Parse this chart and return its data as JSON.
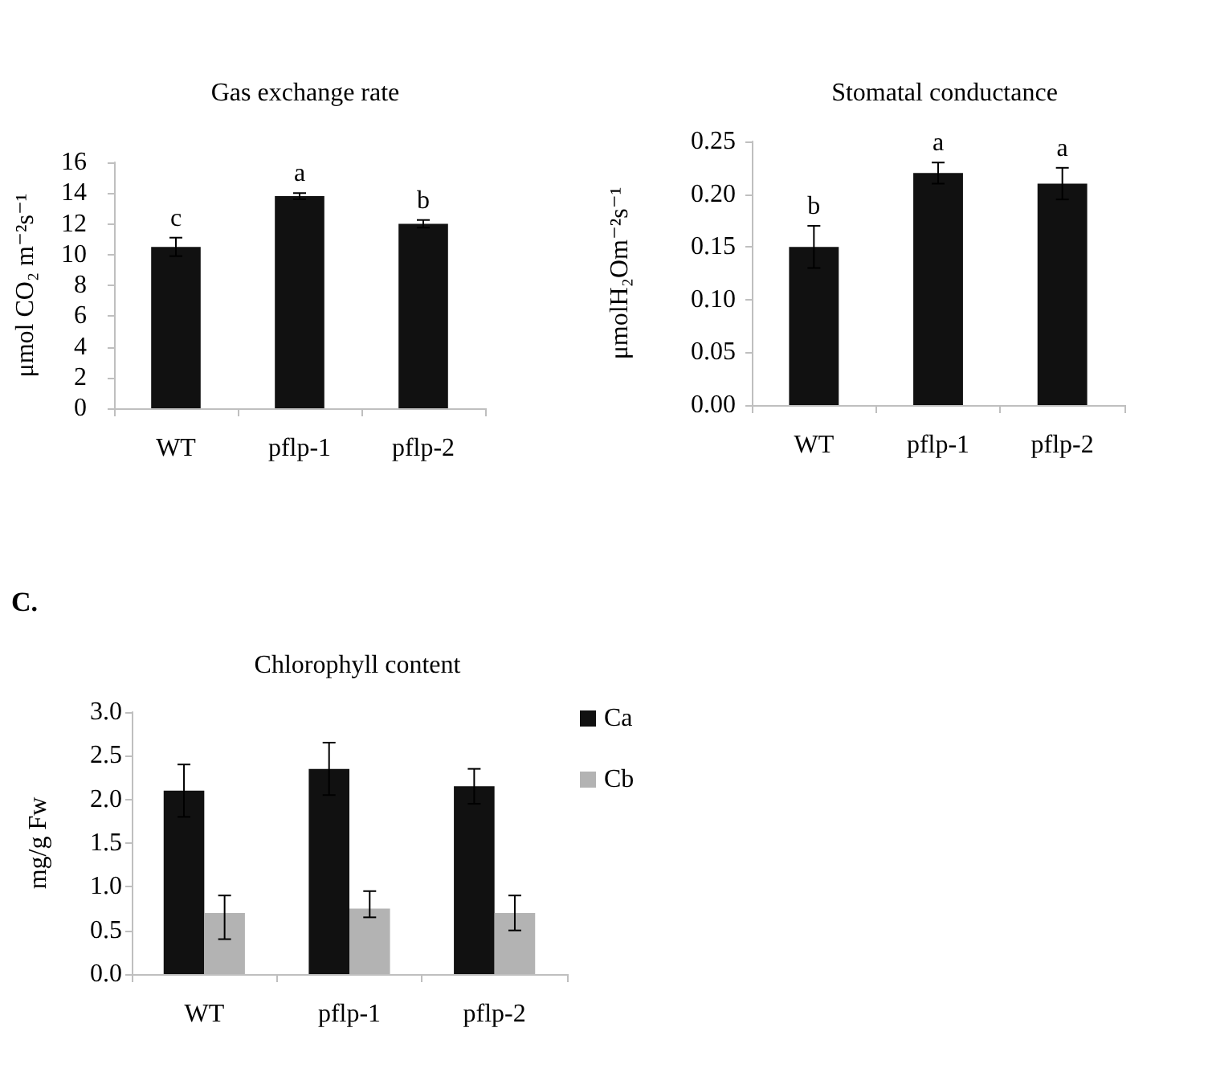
{
  "chart_data": [
    {
      "type": "bar",
      "title": "Gas exchange rate",
      "ylabel": "μmol CO₂ m⁻²s⁻¹",
      "categories": [
        "WT",
        "pflp-1",
        "pflp-2"
      ],
      "values": [
        10.5,
        13.8,
        12.0
      ],
      "errors": [
        0.6,
        0.2,
        0.25
      ],
      "color": "#111111",
      "ylim": [
        0,
        16
      ],
      "yticks": [
        0,
        2,
        4,
        6,
        8,
        10,
        12,
        14,
        16
      ],
      "annotations": [
        {
          "text": "c",
          "x": "WT",
          "y": 11.1
        },
        {
          "text": "a",
          "x": "pflp-1",
          "y": 14.0
        },
        {
          "text": "b",
          "x": "pflp-2",
          "y": 12.25
        }
      ]
    },
    {
      "type": "bar",
      "title": "Stomatal conductance",
      "ylabel": "μmolH₂Om⁻²s⁻¹",
      "categories": [
        "WT",
        "pflp-1",
        "pflp-2"
      ],
      "values": [
        0.15,
        0.22,
        0.21
      ],
      "errors": [
        0.02,
        0.01,
        0.015
      ],
      "color": "#111111",
      "ylim": [
        0,
        0.25
      ],
      "yticks": [
        {
          "value": 0,
          "label": "0.00"
        },
        {
          "value": 0.05,
          "label": "0.05"
        },
        {
          "value": 0.1,
          "label": "0.10"
        },
        {
          "value": 0.15,
          "label": "0.15"
        },
        {
          "value": 0.2,
          "label": "0.20"
        },
        {
          "value": 0.25,
          "label": "0.25"
        }
      ],
      "annotations": [
        {
          "text": "b",
          "x": "WT",
          "y": 0.17
        },
        {
          "text": "a",
          "x": "pflp-1",
          "y": 0.23
        },
        {
          "text": "a",
          "x": "pflp-2",
          "y": 0.225
        }
      ]
    },
    {
      "type": "bar",
      "title": "Chlorophyll content",
      "ylabel": "mg/g Fw",
      "categories": [
        "WT",
        "pflp-1",
        "pflp-2"
      ],
      "series": [
        {
          "name": "Ca",
          "color": "#111111",
          "values": [
            2.1,
            2.35,
            2.15
          ],
          "errors": [
            [
              1.8,
              2.4
            ],
            [
              2.05,
              2.65
            ],
            [
              1.95,
              2.35
            ]
          ]
        },
        {
          "name": "Cb",
          "color": "#b3b3b3",
          "values": [
            0.7,
            0.75,
            0.7
          ],
          "errors": [
            [
              0.4,
              0.9
            ],
            [
              0.65,
              0.95
            ],
            [
              0.5,
              0.9
            ]
          ]
        }
      ],
      "ylim": [
        0,
        3
      ],
      "yticks": [
        {
          "value": 0,
          "label": "0.0"
        },
        {
          "value": 0.5,
          "label": "0.5"
        },
        {
          "value": 1,
          "label": "1.0"
        },
        {
          "value": 1.5,
          "label": "1.5"
        },
        {
          "value": 2,
          "label": "2.0"
        },
        {
          "value": 2.5,
          "label": "2.5"
        },
        {
          "value": 3,
          "label": "3.0"
        }
      ],
      "legend": "right",
      "annotations": [
        "C."
      ]
    }
  ]
}
